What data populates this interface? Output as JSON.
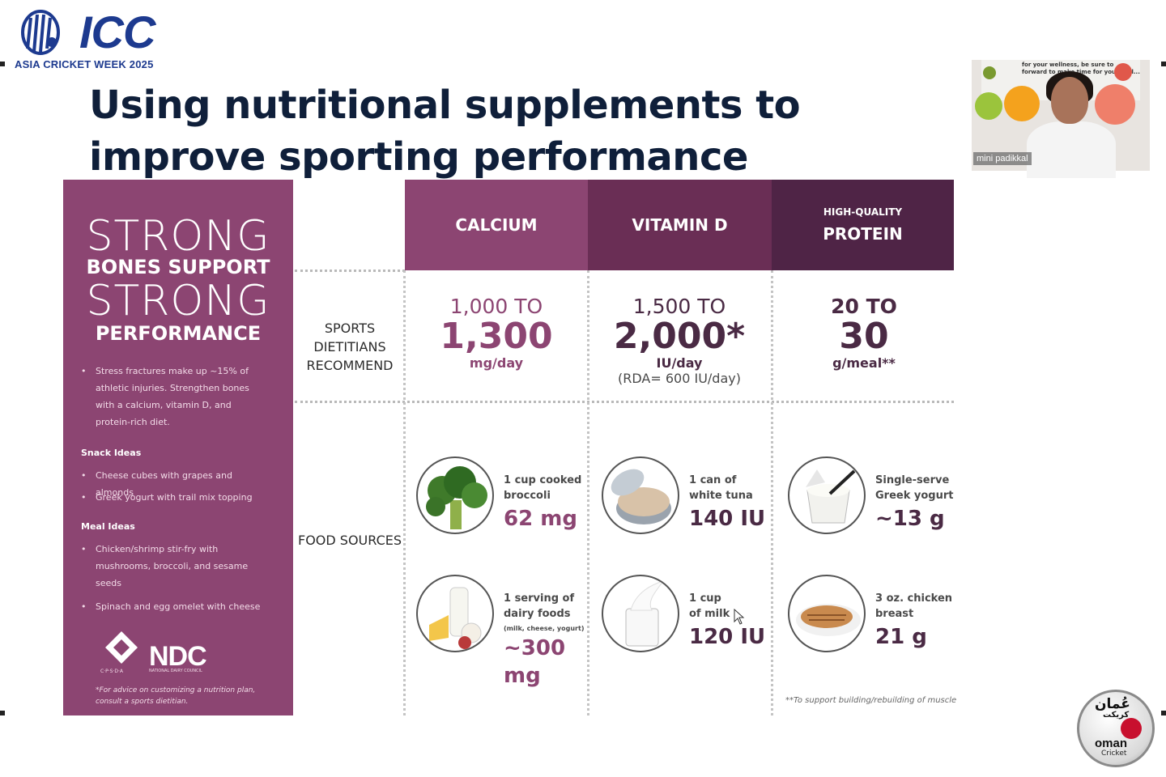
{
  "logo": {
    "icc_text": "ICC",
    "event": "ASIA CRICKET WEEK 2025"
  },
  "slide": {
    "title": "Using nutritional supplements to improve sporting performance"
  },
  "video": {
    "participant_name": "mini padikkal",
    "backdrop_text": "for your wellness, be sure to forward to make time for your well..."
  },
  "left_panel": {
    "strong_1": "STRONG",
    "line_1": "BONES SUPPORT",
    "strong_2": "STRONG",
    "line_2": "PERFORMANCE",
    "intro_bullet": "Stress fractures make up ~15% of athletic injuries. Strengthen bones with a calcium, vitamin D, and protein-rich diet.",
    "snack_heading": "Snack Ideas",
    "snacks": [
      "Cheese cubes with grapes and almonds",
      "Greek yogurt with trail mix topping"
    ],
    "meal_heading": "Meal Ideas",
    "meals": [
      "Chicken/shrimp stir-fry with mushrooms, broccoli, and sesame seeds",
      "Spinach and egg omelet with cheese"
    ],
    "cpsda": "C·P·S·D·A",
    "ndc": "NDC",
    "ndc_full": "NATIONAL DAIRY COUNCIL",
    "footnote": "*For advice on customizing a nutrition plan, consult a sports dietitian."
  },
  "table": {
    "columns": [
      {
        "small": "",
        "label": "CALCIUM",
        "color": "#8c4572"
      },
      {
        "small": "",
        "label": "VITAMIN D",
        "color": "#6a2e55"
      },
      {
        "small": "HIGH-QUALITY",
        "label": "PROTEIN",
        "color": "#4f2446"
      }
    ],
    "row_recommend": "SPORTS DIETITIANS RECOMMEND",
    "row_food": "FOOD SOURCES",
    "recommend": [
      {
        "top": "1,000 TO",
        "big": "1,300",
        "unit": "mg/day",
        "note": ""
      },
      {
        "top": "1,500 TO",
        "big": "2,000*",
        "unit": "IU/day",
        "note": "(RDA= 600 IU/day)"
      },
      {
        "top": "20 TO",
        "big": "30",
        "unit": "g/meal**",
        "note": ""
      }
    ],
    "foods": [
      {
        "icon": "broccoli-icon",
        "desc_1": "1 cup cooked",
        "desc_2": "broccoli",
        "extra": "",
        "amount": "62 mg"
      },
      {
        "icon": "tuna-can-icon",
        "desc_1": "1 can of",
        "desc_2": "white tuna",
        "extra": "",
        "amount": "140 IU"
      },
      {
        "icon": "yogurt-icon",
        "desc_1": "Single-serve",
        "desc_2": "Greek yogurt",
        "extra": "",
        "amount": "~13 g"
      },
      {
        "icon": "dairy-icon",
        "desc_1": "1 serving of",
        "desc_2": "dairy foods",
        "extra": "(milk, cheese, yogurt)",
        "amount": "~300",
        "amount_2": "mg"
      },
      {
        "icon": "milk-icon",
        "desc_1": "1 cup",
        "desc_2": "of milk",
        "extra": "",
        "amount": "120 IU"
      },
      {
        "icon": "chicken-icon",
        "desc_1": "3 oz. chicken",
        "desc_2": "breast",
        "extra": "",
        "amount": "21 g"
      }
    ],
    "footnote": "**To support building/rebuilding of muscle"
  },
  "badge": {
    "arabic": "عُمان",
    "arabic_2": "كريكت",
    "oman": "oman",
    "cricket": "Cricket"
  }
}
